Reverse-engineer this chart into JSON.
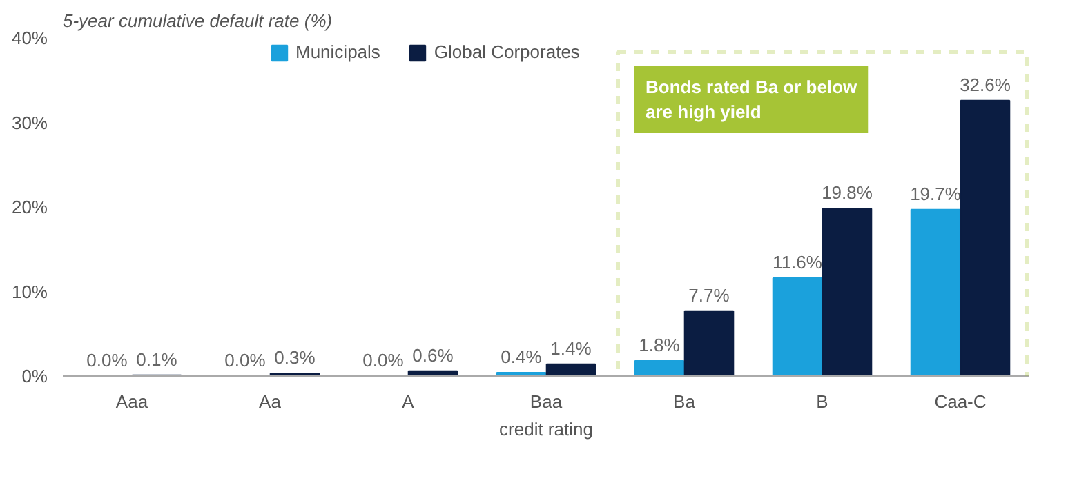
{
  "chart_data": {
    "type": "bar",
    "ylabel": "5-year cumulative default rate (%)",
    "xlabel": "credit rating",
    "categories": [
      "Aaa",
      "Aa",
      "A",
      "Baa",
      "Ba",
      "B",
      "Caa-C"
    ],
    "series": [
      {
        "name": "Municipals",
        "color": "#1ba1dc",
        "values": [
          0.0,
          0.0,
          0.0,
          0.4,
          1.8,
          11.6,
          19.7
        ],
        "value_labels": [
          "0.0%",
          "0.0%",
          "0.0%",
          "0.4%",
          "1.8%",
          "11.6%",
          "19.7%"
        ]
      },
      {
        "name": "Global Corporates",
        "color": "#0b1d42",
        "values": [
          0.1,
          0.3,
          0.6,
          1.4,
          7.7,
          19.8,
          32.6
        ],
        "value_labels": [
          "0.1%",
          "0.3%",
          "0.6%",
          "1.4%",
          "7.7%",
          "19.8%",
          "32.6%"
        ]
      }
    ],
    "ylim": [
      0,
      40
    ],
    "yticks": [
      {
        "value": 0,
        "label": "0%"
      },
      {
        "value": 10,
        "label": "10%"
      },
      {
        "value": 20,
        "label": "20%"
      },
      {
        "value": 30,
        "label": "30%"
      },
      {
        "value": 40,
        "label": "40%"
      }
    ],
    "annotations": [
      "Bonds rated Ba or below are high yield"
    ],
    "grid": false,
    "legend": "top"
  }
}
